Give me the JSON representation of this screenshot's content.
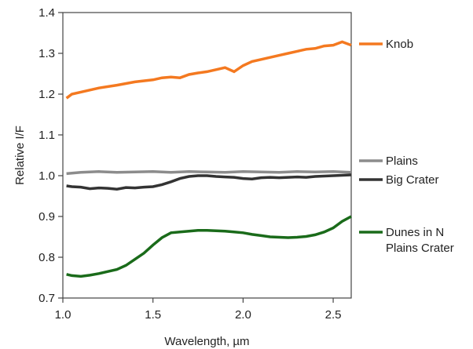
{
  "chart_data": {
    "type": "line",
    "title": "",
    "xlabel": "Wavelength, µm",
    "ylabel": "Relative I/F",
    "xlim": [
      1.0,
      2.6
    ],
    "ylim": [
      0.7,
      1.4
    ],
    "xticks": [
      "1.0",
      "1.5",
      "2.0",
      "2.5"
    ],
    "yticks": [
      "0.7",
      "0.8",
      "0.9",
      "1.0",
      "1.1",
      "1.2",
      "1.3",
      "1.4"
    ],
    "grid": false,
    "legend": "right",
    "series": [
      {
        "name": "Knob",
        "color": "#f47920",
        "x": [
          1.02,
          1.05,
          1.1,
          1.2,
          1.3,
          1.4,
          1.5,
          1.55,
          1.6,
          1.65,
          1.7,
          1.75,
          1.8,
          1.85,
          1.9,
          1.95,
          2.0,
          2.05,
          2.1,
          2.15,
          2.2,
          2.25,
          2.3,
          2.35,
          2.4,
          2.45,
          2.5,
          2.55,
          2.6
        ],
        "y": [
          1.19,
          1.2,
          1.205,
          1.215,
          1.222,
          1.23,
          1.235,
          1.24,
          1.242,
          1.24,
          1.248,
          1.252,
          1.255,
          1.26,
          1.265,
          1.255,
          1.27,
          1.28,
          1.285,
          1.29,
          1.295,
          1.3,
          1.305,
          1.31,
          1.312,
          1.318,
          1.32,
          1.328,
          1.32
        ]
      },
      {
        "name": "Plains",
        "color": "#8c8c8c",
        "x": [
          1.02,
          1.1,
          1.2,
          1.3,
          1.4,
          1.5,
          1.6,
          1.7,
          1.8,
          1.9,
          2.0,
          2.1,
          2.2,
          2.3,
          2.4,
          2.5,
          2.6
        ],
        "y": [
          1.005,
          1.008,
          1.01,
          1.008,
          1.009,
          1.01,
          1.008,
          1.01,
          1.009,
          1.008,
          1.01,
          1.009,
          1.008,
          1.01,
          1.009,
          1.01,
          1.008
        ]
      },
      {
        "name": "Big Crater",
        "color": "#333333",
        "x": [
          1.02,
          1.05,
          1.1,
          1.15,
          1.2,
          1.25,
          1.3,
          1.35,
          1.4,
          1.45,
          1.5,
          1.55,
          1.6,
          1.65,
          1.7,
          1.75,
          1.8,
          1.85,
          1.9,
          1.95,
          2.0,
          2.05,
          2.1,
          2.15,
          2.2,
          2.25,
          2.3,
          2.35,
          2.4,
          2.45,
          2.5,
          2.55,
          2.6
        ],
        "y": [
          0.975,
          0.973,
          0.972,
          0.968,
          0.97,
          0.969,
          0.967,
          0.971,
          0.97,
          0.972,
          0.973,
          0.978,
          0.985,
          0.993,
          0.998,
          1.0,
          1.0,
          0.998,
          0.997,
          0.996,
          0.993,
          0.992,
          0.995,
          0.996,
          0.995,
          0.996,
          0.997,
          0.996,
          0.998,
          0.999,
          1.0,
          1.001,
          1.002
        ]
      },
      {
        "name": "Dunes in N Plains Crater",
        "color": "#1a6b1a",
        "x": [
          1.02,
          1.05,
          1.1,
          1.15,
          1.2,
          1.25,
          1.3,
          1.35,
          1.4,
          1.45,
          1.5,
          1.55,
          1.6,
          1.65,
          1.7,
          1.75,
          1.8,
          1.85,
          1.9,
          1.95,
          2.0,
          2.05,
          2.1,
          2.15,
          2.2,
          2.25,
          2.3,
          2.35,
          2.4,
          2.45,
          2.5,
          2.55,
          2.6
        ],
        "y": [
          0.758,
          0.755,
          0.753,
          0.756,
          0.76,
          0.765,
          0.77,
          0.78,
          0.795,
          0.81,
          0.83,
          0.848,
          0.86,
          0.862,
          0.864,
          0.866,
          0.866,
          0.865,
          0.864,
          0.862,
          0.86,
          0.856,
          0.853,
          0.85,
          0.849,
          0.848,
          0.849,
          0.851,
          0.855,
          0.862,
          0.872,
          0.888,
          0.9
        ]
      }
    ]
  }
}
